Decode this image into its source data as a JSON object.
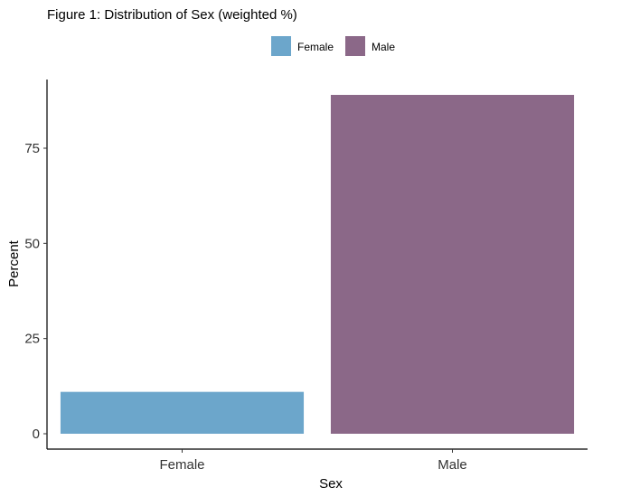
{
  "chart_data": {
    "type": "bar",
    "title": "Figure 1: Distribution of Sex (weighted %)",
    "xlabel": "Sex",
    "ylabel": "Percent",
    "categories": [
      "Female",
      "Male"
    ],
    "values": [
      11,
      89
    ],
    "colors": [
      "#6ca6cb",
      "#8b6888"
    ],
    "ylim": [
      0,
      89
    ],
    "yticks": [
      0,
      25,
      50,
      75
    ],
    "ytick_labels": [
      "0",
      "25",
      "50",
      "75"
    ],
    "grid": false,
    "legend": {
      "position": "top",
      "entries": [
        "Female",
        "Male"
      ]
    }
  }
}
